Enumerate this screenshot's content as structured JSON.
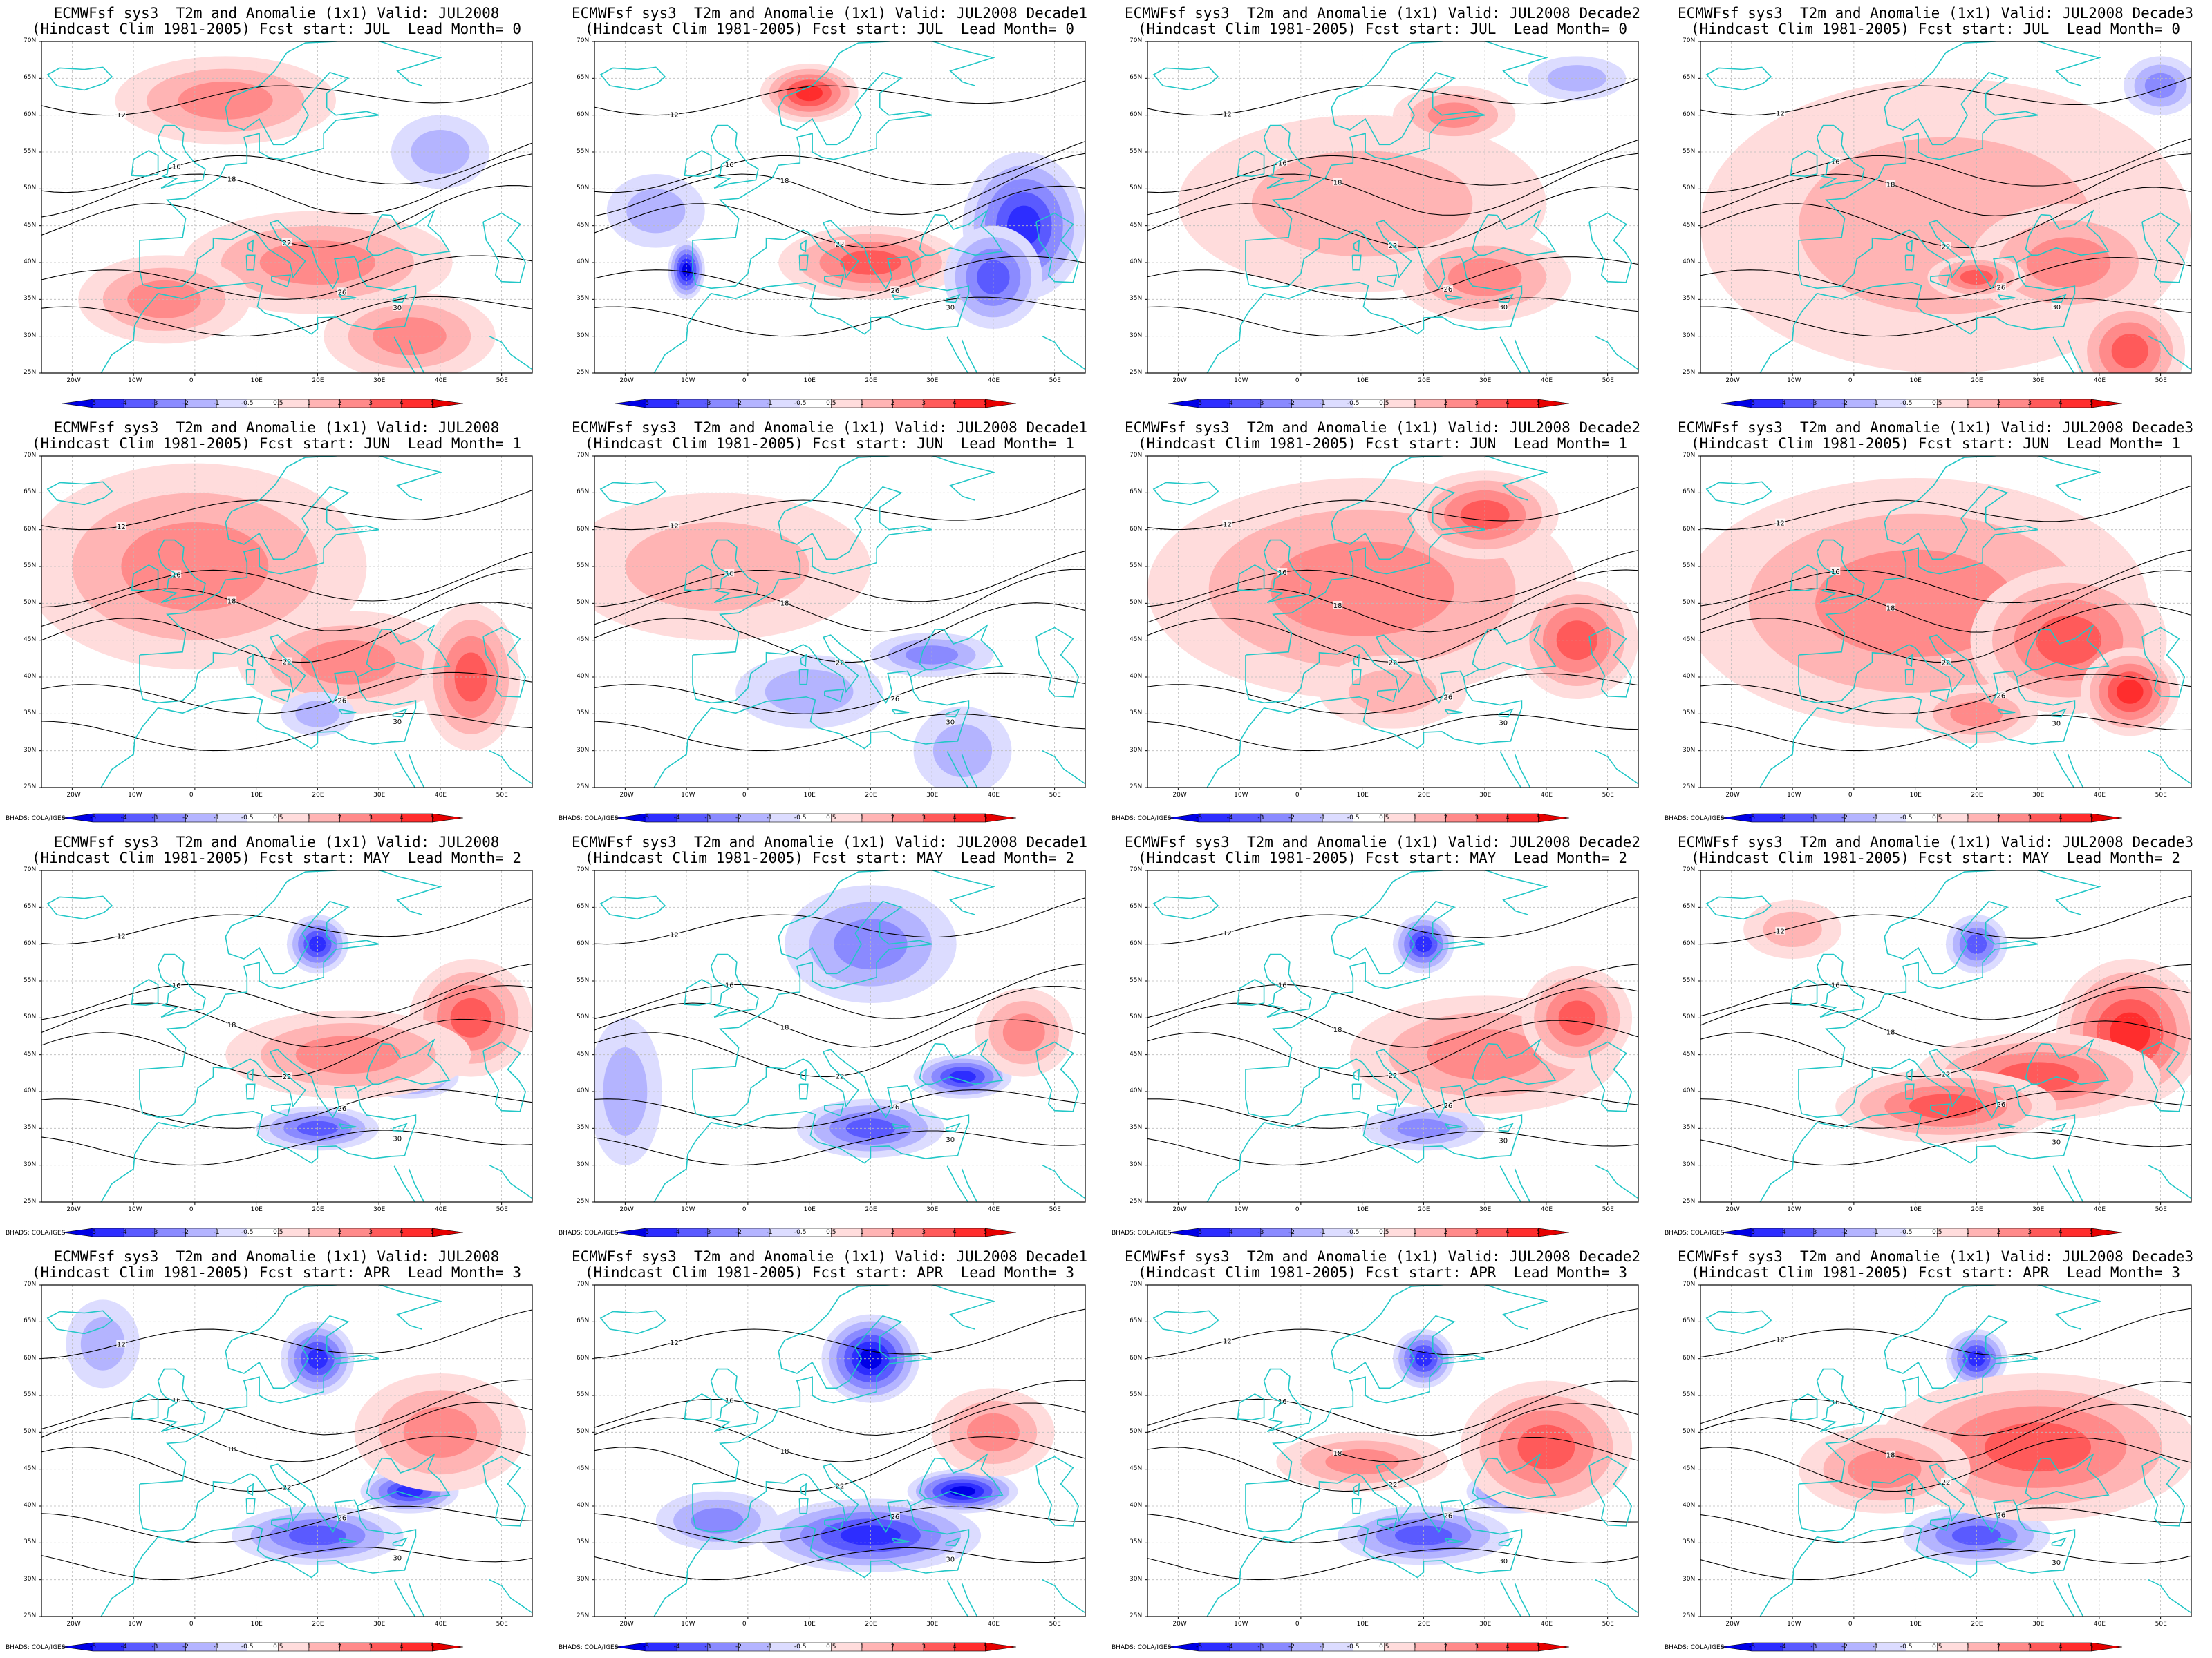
{
  "figure": {
    "model": "ECMWFsf sys3",
    "variable": "T2m and Anomalie (1x1)",
    "credit": "BHADS: COLA/IGES",
    "rows": [
      {
        "fcst_start": "JUL",
        "lead_month": 0
      },
      {
        "fcst_start": "JUN",
        "lead_month": 1
      },
      {
        "fcst_start": "MAY",
        "lead_month": 2
      },
      {
        "fcst_start": "APR",
        "lead_month": 3
      }
    ],
    "columns": [
      {
        "valid": "JUL2008"
      },
      {
        "valid": "JUL2008 Decade1"
      },
      {
        "valid": "JUL2008 Decade2"
      },
      {
        "valid": "JUL2008 Decade3"
      }
    ],
    "panels": [
      {
        "title1": "ECMWFsf sys3  T2m and Anomalie (1x1) Valid: JUL2008",
        "title2": "(Hindcast Clim 1981-2005) Fcst start: JUL  Lead Month= 0"
      },
      {
        "title1": "ECMWFsf sys3  T2m and Anomalie (1x1) Valid: JUL2008 Decade1",
        "title2": "(Hindcast Clim 1981-2005) Fcst start: JUL  Lead Month= 0"
      },
      {
        "title1": "ECMWFsf sys3  T2m and Anomalie (1x1) Valid: JUL2008 Decade2",
        "title2": "(Hindcast Clim 1981-2005) Fcst start: JUL  Lead Month= 0"
      },
      {
        "title1": "ECMWFsf sys3  T2m and Anomalie (1x1) Valid: JUL2008 Decade3",
        "title2": "(Hindcast Clim 1981-2005) Fcst start: JUL  Lead Month= 0"
      },
      {
        "title1": "ECMWFsf sys3  T2m and Anomalie (1x1) Valid: JUL2008",
        "title2": "(Hindcast Clim 1981-2005) Fcst start: JUN  Lead Month= 1"
      },
      {
        "title1": "ECMWFsf sys3  T2m and Anomalie (1x1) Valid: JUL2008 Decade1",
        "title2": "(Hindcast Clim 1981-2005) Fcst start: JUN  Lead Month= 1"
      },
      {
        "title1": "ECMWFsf sys3  T2m and Anomalie (1x1) Valid: JUL2008 Decade2",
        "title2": "(Hindcast Clim 1981-2005) Fcst start: JUN  Lead Month= 1"
      },
      {
        "title1": "ECMWFsf sys3  T2m and Anomalie (1x1) Valid: JUL2008 Decade3",
        "title2": "(Hindcast Clim 1981-2005) Fcst start: JUN  Lead Month= 1"
      },
      {
        "title1": "ECMWFsf sys3  T2m and Anomalie (1x1) Valid: JUL2008",
        "title2": "(Hindcast Clim 1981-2005) Fcst start: MAY  Lead Month= 2"
      },
      {
        "title1": "ECMWFsf sys3  T2m and Anomalie (1x1) Valid: JUL2008 Decade1",
        "title2": "(Hindcast Clim 1981-2005) Fcst start: MAY  Lead Month= 2"
      },
      {
        "title1": "ECMWFsf sys3  T2m and Anomalie (1x1) Valid: JUL2008 Decade2",
        "title2": "(Hindcast Clim 1981-2005) Fcst start: MAY  Lead Month= 2"
      },
      {
        "title1": "ECMWFsf sys3  T2m and Anomalie (1x1) Valid: JUL2008 Decade3",
        "title2": "(Hindcast Clim 1981-2005) Fcst start: MAY  Lead Month= 2"
      },
      {
        "title1": "ECMWFsf sys3  T2m and Anomalie (1x1) Valid: JUL2008",
        "title2": "(Hindcast Clim 1981-2005) Fcst start: APR  Lead Month= 3"
      },
      {
        "title1": "ECMWFsf sys3  T2m and Anomalie (1x1) Valid: JUL2008 Decade1",
        "title2": "(Hindcast Clim 1981-2005) Fcst start: APR  Lead Month= 3"
      },
      {
        "title1": "ECMWFsf sys3  T2m and Anomalie (1x1) Valid: JUL2008 Decade2",
        "title2": "(Hindcast Clim 1981-2005) Fcst start: APR  Lead Month= 3"
      },
      {
        "title1": "ECMWFsf sys3  T2m and Anomalie (1x1) Valid: JUL2008 Decade3",
        "title2": "(Hindcast Clim 1981-2005) Fcst start: APR  Lead Month= 3"
      }
    ]
  },
  "map": {
    "lon_range": [
      -25,
      55
    ],
    "lat_range": [
      25,
      70
    ],
    "lon_ticks": [
      "20W",
      "10W",
      "0",
      "10E",
      "20E",
      "30E",
      "40E",
      "50E"
    ],
    "lon_tick_values": [
      -20,
      -10,
      0,
      10,
      20,
      30,
      40,
      50
    ],
    "lat_ticks": [
      "25N",
      "30N",
      "35N",
      "40N",
      "45N",
      "50N",
      "55N",
      "60N",
      "65N",
      "70N"
    ],
    "lat_tick_values": [
      25,
      30,
      35,
      40,
      45,
      50,
      55,
      60,
      65,
      70
    ],
    "coast_color": "#22c7c7",
    "contour_color": "#000000",
    "contour_labels": [
      "12",
      "16",
      "18",
      "22",
      "26",
      "30"
    ],
    "grid": "dashed"
  },
  "colorbar": {
    "levels": [
      "-5",
      "-4",
      "-3",
      "-2",
      "-1",
      "-0.5",
      "0.5",
      "1",
      "2",
      "3",
      "4",
      "5"
    ],
    "colors": [
      "#0000e6",
      "#2d2dff",
      "#5a5aff",
      "#8a8aff",
      "#b4b4ff",
      "#dcdcff",
      "#ffffff",
      "#ffdcdc",
      "#ffb4b4",
      "#ff8a8a",
      "#ff5a5a",
      "#ff2d2d",
      "#e60000"
    ]
  }
}
